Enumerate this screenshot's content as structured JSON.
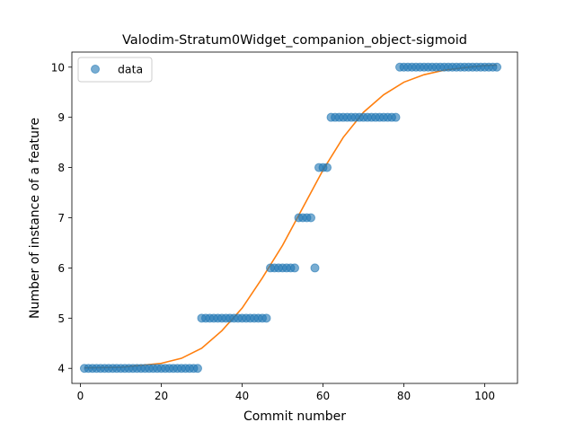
{
  "chart_data": {
    "type": "scatter",
    "title": "Valodim-Stratum0Widget_companion_object-sigmoid",
    "xlabel": "Commit number",
    "ylabel": "Number of instance of a feature",
    "xlim": [
      -2.1,
      108.1
    ],
    "ylim": [
      3.7,
      10.3
    ],
    "xticks": [
      0,
      20,
      40,
      60,
      80,
      100
    ],
    "yticks": [
      4,
      5,
      6,
      7,
      8,
      9,
      10
    ],
    "grid": false,
    "legend_placement": "upper-left",
    "series": [
      {
        "name": "data",
        "kind": "points",
        "color": "#1f77b4",
        "x": [
          1,
          2,
          3,
          4,
          5,
          6,
          7,
          8,
          9,
          10,
          11,
          12,
          13,
          14,
          15,
          16,
          17,
          18,
          19,
          20,
          21,
          22,
          23,
          24,
          25,
          26,
          27,
          28,
          29,
          30,
          31,
          32,
          33,
          34,
          35,
          36,
          37,
          38,
          39,
          40,
          41,
          42,
          43,
          44,
          45,
          46,
          47,
          48,
          49,
          50,
          51,
          52,
          53,
          54,
          55,
          56,
          57,
          58,
          59,
          60,
          61,
          62,
          63,
          64,
          65,
          66,
          67,
          68,
          69,
          70,
          71,
          72,
          73,
          74,
          75,
          76,
          77,
          78,
          79,
          80,
          81,
          82,
          83,
          84,
          85,
          86,
          87,
          88,
          89,
          90,
          91,
          92,
          93,
          94,
          95,
          96,
          97,
          98,
          99,
          100,
          101,
          102,
          103
        ],
        "y": [
          4,
          4,
          4,
          4,
          4,
          4,
          4,
          4,
          4,
          4,
          4,
          4,
          4,
          4,
          4,
          4,
          4,
          4,
          4,
          4,
          4,
          4,
          4,
          4,
          4,
          4,
          4,
          4,
          4,
          5,
          5,
          5,
          5,
          5,
          5,
          5,
          5,
          5,
          5,
          5,
          5,
          5,
          5,
          5,
          5,
          5,
          6,
          6,
          6,
          6,
          6,
          6,
          6,
          7,
          7,
          7,
          7,
          6,
          8,
          8,
          8,
          9,
          9,
          9,
          9,
          9,
          9,
          9,
          9,
          9,
          9,
          9,
          9,
          9,
          9,
          9,
          9,
          9,
          10,
          10,
          10,
          10,
          10,
          10,
          10,
          10,
          10,
          10,
          10,
          10,
          10,
          10,
          10,
          10,
          10,
          10,
          10,
          10,
          10,
          10,
          10,
          10,
          10
        ]
      },
      {
        "kind": "line",
        "color": "#ff7f0e",
        "x": [
          1,
          10,
          20,
          25,
          30,
          35,
          40,
          45,
          50,
          55,
          60,
          65,
          70,
          75,
          80,
          85,
          90,
          95,
          100,
          103
        ],
        "y": [
          4.01,
          4.02,
          4.1,
          4.2,
          4.4,
          4.75,
          5.2,
          5.8,
          6.45,
          7.2,
          7.95,
          8.6,
          9.1,
          9.45,
          9.7,
          9.85,
          9.94,
          9.99,
          10.03,
          10.04
        ]
      }
    ]
  }
}
